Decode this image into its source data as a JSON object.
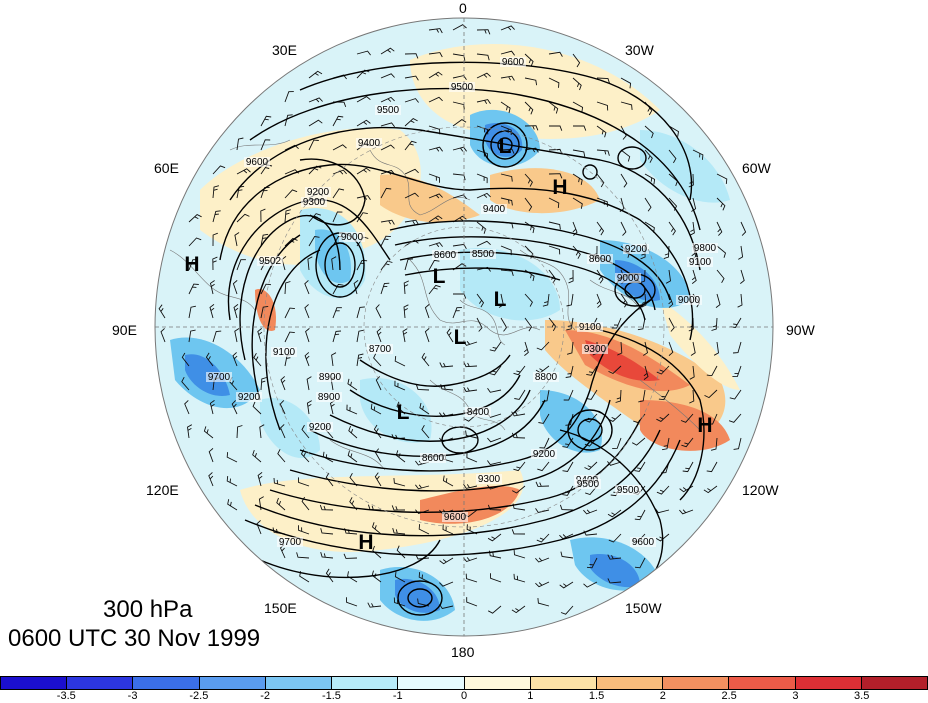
{
  "map": {
    "level": "300 hPa",
    "valid_time": "0600 UTC 30 Nov 1999",
    "longitude_labels": {
      "n": "0",
      "nne": "30W",
      "ne": "60W",
      "e": "90W",
      "se": "120W",
      "sse": "150W",
      "s": "180",
      "ssw": "150E",
      "sw": "120E",
      "w": "90E",
      "nw": "60E",
      "nnw": "30E"
    },
    "pressure_systems": [
      {
        "type": "L"
      },
      {
        "type": "L"
      },
      {
        "type": "L"
      },
      {
        "type": "L"
      },
      {
        "type": "L"
      },
      {
        "type": "H"
      },
      {
        "type": "H"
      },
      {
        "type": "H"
      },
      {
        "type": "H"
      }
    ],
    "contour_labels": [
      "9600",
      "9500",
      "9500",
      "9400",
      "9300",
      "9400",
      "9600",
      "9200",
      "9000",
      "9502",
      "9100",
      "9200",
      "8700",
      "8900",
      "8600",
      "8500",
      "8600",
      "9000",
      "9200",
      "9100",
      "9300",
      "9300",
      "9400",
      "9500",
      "9600",
      "9700",
      "9600",
      "9500",
      "8800",
      "8900",
      "9200",
      "8600",
      "8400",
      "9200",
      "9100",
      "9000",
      "9800",
      "9700"
    ],
    "colors": {
      "water_light": "#d9f3f8",
      "anomaly_neg_1": "#b4e9f7",
      "anomaly_neg_2": "#6ec6f0",
      "anomaly_neg_3": "#3f8fe6",
      "anomaly_pos_1": "#fdf0c8",
      "anomaly_pos_2": "#f9c98b",
      "anomaly_pos_3": "#f2895c",
      "anomaly_pos_4": "#e8483a"
    }
  },
  "colorbar": {
    "colors": [
      "#1b0fcf",
      "#2c36e0",
      "#3b6fe8",
      "#5a9cef",
      "#7cc6f3",
      "#b7ebf9",
      "#e6fbfe",
      "#fef8dc",
      "#fce2a6",
      "#f9bd7c",
      "#f39060",
      "#ec5b48",
      "#dd2f35",
      "#b21f2a"
    ],
    "ticks": [
      "-3.5",
      "-3",
      "-2.5",
      "-2",
      "-1.5",
      "-1",
      "0",
      "1",
      "1.5",
      "2",
      "2.5",
      "3",
      "3.5"
    ]
  }
}
